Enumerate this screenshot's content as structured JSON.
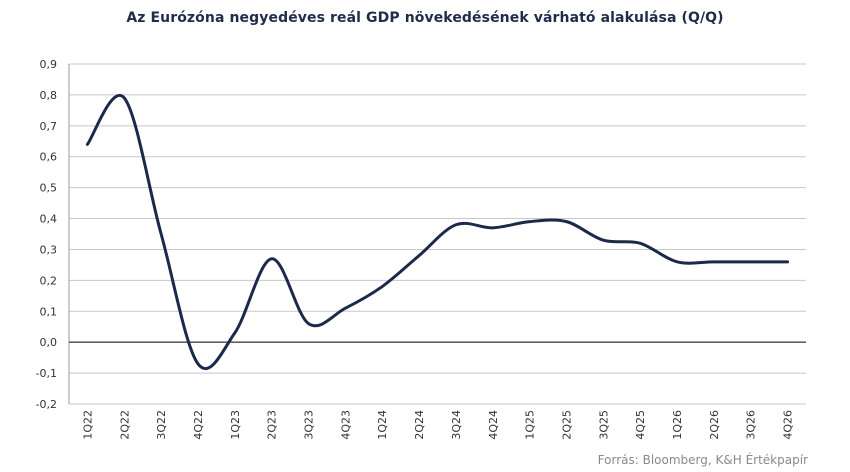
{
  "chart_data": {
    "type": "line",
    "title": "Az Eurózóna negyedéves reál GDP növekedésének várható alakulása (Q/Q)",
    "source": "Forrás: Bloomberg, K&H Értékpapír",
    "xlabel": "",
    "ylabel": "",
    "ylim": [
      -0.2,
      0.9
    ],
    "yticks": [
      "0,9",
      "0,8",
      "0,7",
      "0,6",
      "0,5",
      "0,4",
      "0,3",
      "0,2",
      "0,1",
      "0,0",
      "-0,1",
      "-0,2"
    ],
    "ytick_values": [
      0.9,
      0.8,
      0.7,
      0.6,
      0.5,
      0.4,
      0.3,
      0.2,
      0.1,
      0.0,
      -0.1,
      -0.2
    ],
    "grid": true,
    "legend": "none",
    "line_color": "#1b2a4a",
    "categories": [
      "1Q22",
      "2Q22",
      "3Q22",
      "4Q22",
      "1Q23",
      "2Q23",
      "3Q23",
      "4Q23",
      "1Q24",
      "2Q24",
      "3Q24",
      "4Q24",
      "1Q25",
      "2Q25",
      "3Q25",
      "4Q25",
      "1Q26",
      "2Q26",
      "3Q26",
      "4Q26"
    ],
    "series": [
      {
        "values": [
          0.64,
          0.79,
          0.35,
          -0.07,
          0.03,
          0.27,
          0.06,
          0.11,
          0.18,
          0.28,
          0.38,
          0.37,
          0.39,
          0.39,
          0.33,
          0.32,
          0.26,
          0.26,
          0.26,
          0.26
        ]
      }
    ]
  }
}
